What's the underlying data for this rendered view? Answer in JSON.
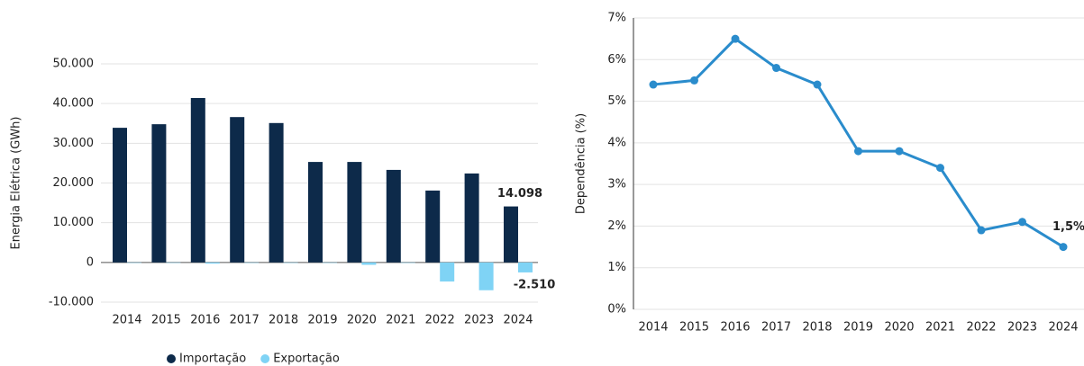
{
  "chart_data": [
    {
      "type": "bar",
      "y_label": "Energia Elétrica (GWh)",
      "categories": [
        "2014",
        "2015",
        "2016",
        "2017",
        "2018",
        "2019",
        "2020",
        "2021",
        "2022",
        "2023",
        "2024"
      ],
      "series": [
        {
          "name": "Importação",
          "color": "#0d2a4a",
          "values": [
            33900,
            34800,
            41400,
            36600,
            35100,
            25300,
            25300,
            23300,
            18100,
            22400,
            14098
          ],
          "value_labels": [
            null,
            null,
            null,
            null,
            null,
            null,
            null,
            null,
            null,
            null,
            "14.098"
          ]
        },
        {
          "name": "Exportação",
          "color": "#7fd3f5",
          "values": [
            -100,
            -100,
            -300,
            -100,
            -100,
            -100,
            -600,
            -100,
            -4800,
            -7000,
            -2510
          ],
          "value_labels": [
            null,
            null,
            null,
            null,
            null,
            null,
            null,
            null,
            null,
            null,
            "-2.510"
          ]
        }
      ],
      "ylim": [
        -10000,
        50000
      ],
      "yticks": [
        {
          "value": -10000,
          "label": "-10.000"
        },
        0,
        {
          "value": 10000,
          "label": "10.000"
        },
        {
          "value": 20000,
          "label": "20.000"
        },
        {
          "value": 30000,
          "label": "30.000"
        },
        {
          "value": 40000,
          "label": "40.000"
        },
        {
          "value": 50000,
          "label": "50.000"
        }
      ],
      "grid": true,
      "legend": "bottom"
    },
    {
      "type": "line",
      "y_label": "Dependência (%)",
      "categories": [
        "2014",
        "2015",
        "2016",
        "2017",
        "2018",
        "2019",
        "2020",
        "2021",
        "2022",
        "2023",
        "2024"
      ],
      "series": [
        {
          "name": "Dependência",
          "color": "#2a8ccc",
          "values": [
            5.4,
            5.5,
            6.5,
            5.8,
            5.4,
            3.8,
            3.8,
            3.4,
            1.9,
            2.1,
            1.5
          ],
          "value_labels": [
            null,
            null,
            null,
            null,
            null,
            null,
            null,
            null,
            null,
            null,
            "1,5%"
          ]
        }
      ],
      "ylim": [
        0,
        7
      ],
      "yticks": [
        {
          "value": 0,
          "label": "0%"
        },
        {
          "value": 1,
          "label": "1%"
        },
        {
          "value": 2,
          "label": "2%"
        },
        {
          "value": 3,
          "label": "3%"
        },
        {
          "value": 4,
          "label": "4%"
        },
        {
          "value": 5,
          "label": "5%"
        },
        {
          "value": 6,
          "label": "6%"
        },
        {
          "value": 7,
          "label": "7%"
        }
      ],
      "grid": true
    }
  ]
}
